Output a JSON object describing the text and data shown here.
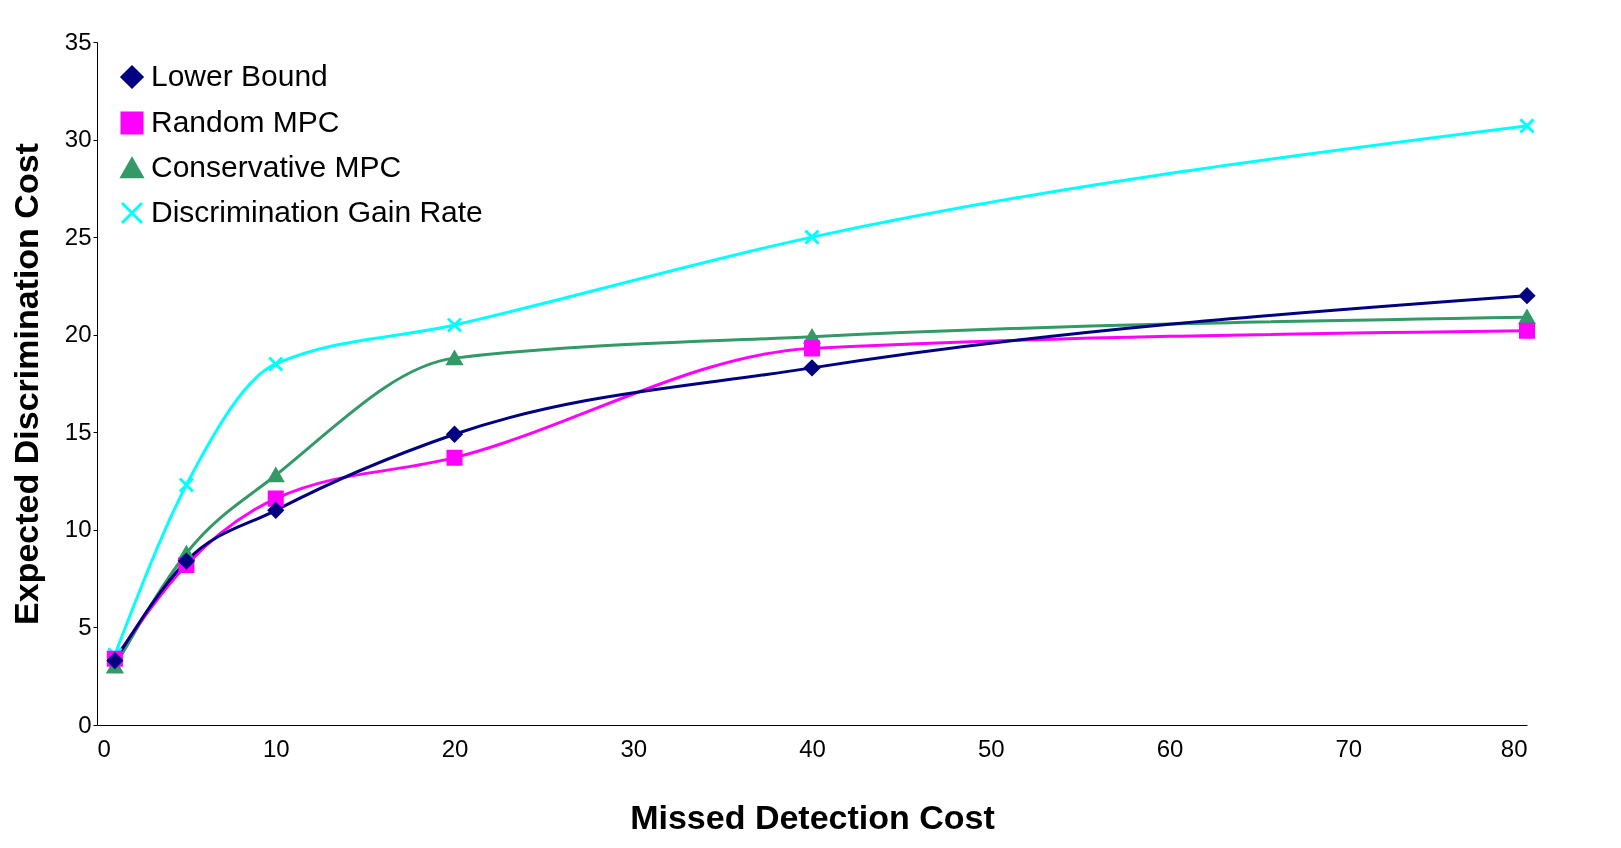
{
  "chart_data": {
    "type": "line",
    "xlabel": "Missed Detection Cost",
    "ylabel": "Expected Discrimination Cost",
    "x": [
      1,
      5,
      10,
      20,
      40,
      80
    ],
    "xlim": [
      0,
      80
    ],
    "xticks": [
      0,
      10,
      20,
      30,
      40,
      50,
      60,
      70,
      80
    ],
    "ylim": [
      0,
      35
    ],
    "yticks": [
      0,
      5,
      10,
      15,
      20,
      25,
      30,
      35
    ],
    "grid": false,
    "legend": "top left",
    "series": [
      {
        "name": "Lower Bound",
        "color": "#000080",
        "marker": "diamond",
        "values": [
          3.3,
          8.4,
          11.0,
          14.9,
          18.3,
          22.0
        ]
      },
      {
        "name": "Random MPC",
        "color": "#ff00ff",
        "marker": "square",
        "values": [
          3.4,
          8.2,
          11.6,
          13.7,
          19.3,
          20.2
        ]
      },
      {
        "name": "Conservative MPC",
        "color": "#339966",
        "marker": "triangle",
        "values": [
          3.0,
          8.8,
          12.8,
          18.8,
          19.9,
          20.9
        ]
      },
      {
        "name": "Discrimination Gain Rate",
        "color": "#00ffff",
        "marker": "cross",
        "values": [
          3.6,
          12.3,
          18.5,
          20.5,
          25.0,
          30.7
        ]
      }
    ]
  }
}
